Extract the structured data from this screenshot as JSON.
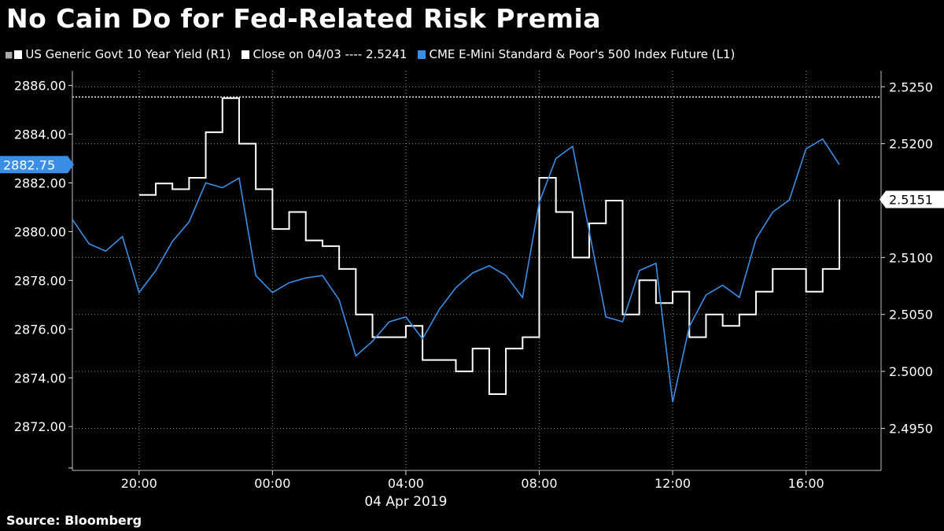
{
  "title": "No Cain Do for Fed-Related Risk Premia",
  "source": "Source: Bloomberg",
  "legend": [
    {
      "label": "US Generic Govt 10 Year Yield  (R1)",
      "color": "#ffffff"
    },
    {
      "label": "Close on 04/03 ---- 2.5241",
      "color": "#ffffff"
    },
    {
      "label": "CME E-Mini Standard & Poor's 500 Index Future  (L1)",
      "color": "#3a8ee6"
    }
  ],
  "colors": {
    "yield": "#ffffff",
    "spx": "#3a8ee6",
    "grid": "#8a8a8a",
    "background": "#000000"
  },
  "chart_data": {
    "type": "line",
    "title": "No Cain Do for Fed-Related Risk Premia",
    "date_label": "04 Apr 2019",
    "x_ticks": [
      "20:00",
      "00:00",
      "04:00",
      "08:00",
      "12:00",
      "16:00"
    ],
    "x_tick_hours": [
      20,
      24,
      28,
      32,
      36,
      40
    ],
    "x_range_hours": [
      18.0,
      42.25
    ],
    "left_axis": {
      "min": 2870.2,
      "max": 2886.6,
      "ticks": [
        "2886.00",
        "2884.00",
        "2882.00",
        "2880.00",
        "2878.00",
        "2876.00",
        "2874.00",
        "2872.00"
      ],
      "tick_values": [
        2886,
        2884,
        2882,
        2880,
        2878,
        2876,
        2874,
        2872
      ]
    },
    "right_axis": {
      "min": 2.4913,
      "max": 2.5264,
      "ticks": [
        "2.5250",
        "2.5200",
        "2.5150",
        "2.5100",
        "2.5050",
        "2.5000",
        "2.4950"
      ],
      "tick_values": [
        2.525,
        2.52,
        2.515,
        2.51,
        2.505,
        2.5,
        2.495
      ]
    },
    "reference_line": {
      "label": "Close on 04/03",
      "value": 2.5241,
      "axis": "right"
    },
    "last_values": {
      "spx": "2882.75",
      "yield": "2.5151"
    },
    "series": [
      {
        "name": "US Generic Govt 10 Year Yield",
        "axis": "right",
        "hours": [
          20.0,
          20.5,
          21.0,
          21.5,
          22.0,
          22.5,
          23.0,
          23.5,
          24.0,
          24.5,
          25.0,
          25.5,
          26.0,
          26.5,
          27.0,
          27.5,
          28.0,
          28.5,
          29.0,
          29.5,
          30.0,
          30.5,
          31.0,
          31.5,
          32.0,
          32.5,
          33.0,
          33.5,
          34.0,
          34.5,
          35.0,
          35.5,
          36.0,
          36.5,
          37.0,
          37.5,
          38.0,
          38.5,
          39.0,
          39.5,
          40.0,
          40.5,
          41.0
        ],
        "values": [
          2.5155,
          2.5165,
          2.516,
          2.517,
          2.521,
          2.524,
          2.52,
          2.516,
          2.5125,
          2.514,
          2.5115,
          2.511,
          2.509,
          2.505,
          2.503,
          2.503,
          2.504,
          2.501,
          2.501,
          2.5,
          2.502,
          2.498,
          2.502,
          2.503,
          2.517,
          2.514,
          2.51,
          2.513,
          2.515,
          2.505,
          2.508,
          2.506,
          2.507,
          2.503,
          2.505,
          2.504,
          2.505,
          2.507,
          2.509,
          2.509,
          2.507,
          2.509,
          2.5151
        ]
      },
      {
        "name": "CME E-Mini Standard & Poor's 500 Index Future",
        "axis": "left",
        "hours": [
          18.0,
          18.5,
          19.0,
          19.5,
          20.0,
          20.5,
          21.0,
          21.5,
          22.0,
          22.5,
          23.0,
          23.5,
          24.0,
          24.5,
          25.0,
          25.5,
          26.0,
          26.5,
          27.0,
          27.5,
          28.0,
          28.5,
          29.0,
          29.5,
          30.0,
          30.5,
          31.0,
          31.5,
          32.0,
          32.5,
          33.0,
          33.5,
          34.0,
          34.5,
          35.0,
          35.5,
          36.0,
          36.5,
          37.0,
          37.5,
          38.0,
          38.5,
          39.0,
          39.5,
          40.0,
          40.5,
          41.0
        ],
        "values": [
          2880.5,
          2879.5,
          2879.2,
          2879.8,
          2877.5,
          2878.4,
          2879.6,
          2880.4,
          2882.0,
          2881.8,
          2882.2,
          2878.2,
          2877.5,
          2877.9,
          2878.1,
          2878.2,
          2877.2,
          2874.9,
          2875.5,
          2876.3,
          2876.5,
          2875.6,
          2876.8,
          2877.7,
          2878.3,
          2878.6,
          2878.2,
          2877.3,
          2881.2,
          2883.0,
          2883.5,
          2880.0,
          2876.5,
          2876.3,
          2878.4,
          2878.7,
          2873.0,
          2876.1,
          2877.4,
          2877.8,
          2877.3,
          2879.7,
          2880.8,
          2881.3,
          2883.4,
          2883.8,
          2882.75
        ]
      }
    ]
  }
}
